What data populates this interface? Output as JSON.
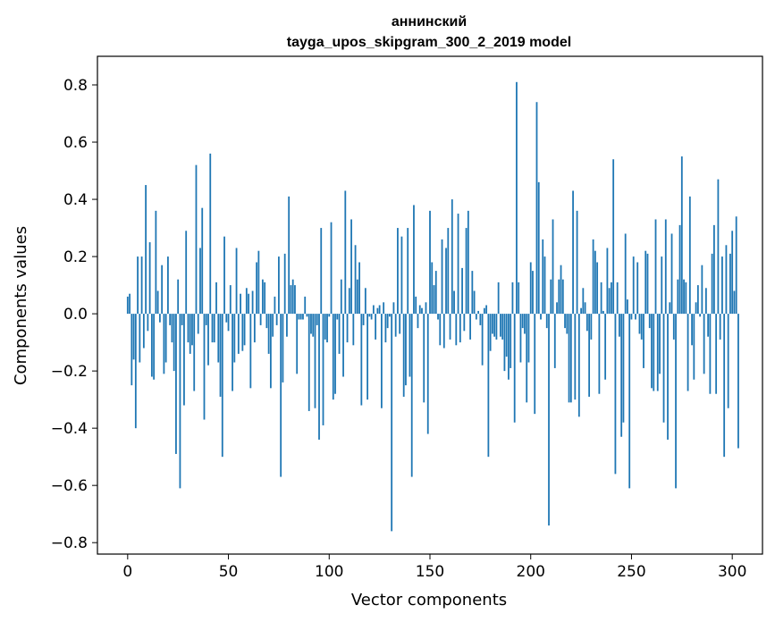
{
  "chart_data": {
    "type": "bar",
    "title_line1": "аннинский",
    "title_line2": "tayga_upos_skipgram_300_2_2019 model",
    "xlabel": "Vector components",
    "ylabel": "Components values",
    "xlim": [
      -15,
      315
    ],
    "ylim": [
      -0.84,
      0.9
    ],
    "xticks": [
      0,
      50,
      100,
      150,
      200,
      250,
      300
    ],
    "xtick_labels": [
      "0",
      "50",
      "100",
      "150",
      "200",
      "250",
      "300"
    ],
    "yticks": [
      -0.8,
      -0.6,
      -0.4,
      -0.2,
      0.0,
      0.2,
      0.4,
      0.6,
      0.8
    ],
    "ytick_labels": [
      "−0.8",
      "−0.6",
      "−0.4",
      "−0.2",
      "0.0",
      "0.2",
      "0.4",
      "0.6",
      "0.8"
    ],
    "bar_color": "#1f77b4",
    "grid": false,
    "values": [
      0.06,
      0.07,
      -0.25,
      -0.16,
      -0.4,
      0.2,
      -0.17,
      0.2,
      -0.12,
      0.45,
      -0.06,
      0.25,
      -0.22,
      -0.23,
      0.36,
      0.08,
      -0.03,
      0.17,
      -0.21,
      -0.17,
      0.2,
      -0.04,
      -0.1,
      -0.2,
      -0.49,
      0.12,
      -0.61,
      -0.04,
      -0.32,
      0.29,
      -0.1,
      -0.14,
      -0.11,
      -0.27,
      0.52,
      -0.07,
      0.23,
      0.37,
      -0.37,
      -0.04,
      -0.18,
      0.56,
      -0.1,
      -0.1,
      0.11,
      -0.17,
      -0.29,
      -0.5,
      0.27,
      -0.03,
      -0.06,
      0.1,
      -0.27,
      -0.17,
      0.23,
      -0.14,
      0.07,
      -0.13,
      -0.11,
      0.09,
      0.07,
      -0.26,
      0.08,
      -0.1,
      0.18,
      0.22,
      -0.04,
      0.12,
      0.11,
      -0.05,
      -0.14,
      -0.26,
      -0.08,
      0.06,
      -0.04,
      0.2,
      -0.57,
      -0.24,
      0.21,
      -0.08,
      0.41,
      0.1,
      0.12,
      0.1,
      -0.21,
      -0.02,
      -0.02,
      -0.02,
      0.06,
      -0.01,
      -0.34,
      -0.07,
      -0.08,
      -0.33,
      -0.04,
      -0.44,
      0.3,
      -0.39,
      -0.09,
      -0.1,
      -0.01,
      0.32,
      -0.3,
      -0.28,
      -0.02,
      -0.14,
      0.12,
      -0.22,
      0.43,
      -0.1,
      0.09,
      0.33,
      -0.11,
      0.24,
      0.12,
      0.18,
      -0.32,
      -0.04,
      0.09,
      -0.3,
      -0.01,
      -0.02,
      0.03,
      -0.09,
      0.02,
      0.03,
      -0.33,
      0.04,
      -0.1,
      -0.05,
      -0.01,
      -0.76,
      0.04,
      -0.08,
      0.3,
      -0.07,
      0.27,
      -0.29,
      -0.25,
      0.3,
      -0.22,
      -0.57,
      0.38,
      0.06,
      -0.05,
      0.03,
      0.02,
      -0.31,
      0.04,
      -0.42,
      0.36,
      0.18,
      0.1,
      0.15,
      -0.02,
      -0.11,
      0.26,
      -0.12,
      0.23,
      0.3,
      -0.09,
      0.4,
      0.08,
      -0.11,
      0.35,
      -0.1,
      0.16,
      -0.06,
      0.3,
      0.36,
      -0.09,
      0.15,
      0.08,
      -0.02,
      0.01,
      -0.04,
      -0.18,
      0.02,
      0.03,
      -0.5,
      -0.13,
      -0.07,
      -0.08,
      -0.09,
      0.11,
      -0.08,
      -0.09,
      -0.2,
      -0.15,
      -0.23,
      -0.19,
      0.11,
      -0.38,
      0.81,
      0.11,
      -0.17,
      -0.05,
      -0.07,
      -0.31,
      -0.17,
      0.18,
      0.15,
      -0.35,
      0.74,
      0.46,
      -0.02,
      0.26,
      0.2,
      -0.05,
      -0.74,
      0.12,
      0.33,
      -0.19,
      0.04,
      0.12,
      0.17,
      0.12,
      -0.05,
      -0.07,
      -0.31,
      -0.31,
      0.43,
      -0.3,
      0.36,
      -0.36,
      0.02,
      0.09,
      0.04,
      -0.06,
      -0.29,
      -0.09,
      0.26,
      0.22,
      0.18,
      -0.28,
      0.11,
      0.01,
      -0.23,
      0.23,
      0.09,
      0.11,
      0.54,
      -0.56,
      0.11,
      -0.08,
      -0.43,
      -0.38,
      0.28,
      0.05,
      -0.61,
      -0.02,
      0.2,
      -0.02,
      0.18,
      -0.07,
      -0.09,
      -0.19,
      0.22,
      0.21,
      -0.05,
      -0.26,
      -0.27,
      0.33,
      -0.27,
      -0.21,
      0.2,
      -0.38,
      0.33,
      -0.44,
      0.04,
      0.28,
      -0.09,
      -0.61,
      0.12,
      0.31,
      0.55,
      0.12,
      0.11,
      -0.27,
      0.41,
      -0.11,
      -0.23,
      0.04,
      0.1,
      -0.01,
      0.17,
      -0.21,
      0.09,
      -0.08,
      -0.28,
      0.21,
      0.31,
      -0.28,
      0.47,
      -0.09,
      0.2,
      -0.5,
      0.24,
      -0.33,
      0.21,
      0.29,
      0.08,
      0.34,
      -0.47
    ]
  }
}
